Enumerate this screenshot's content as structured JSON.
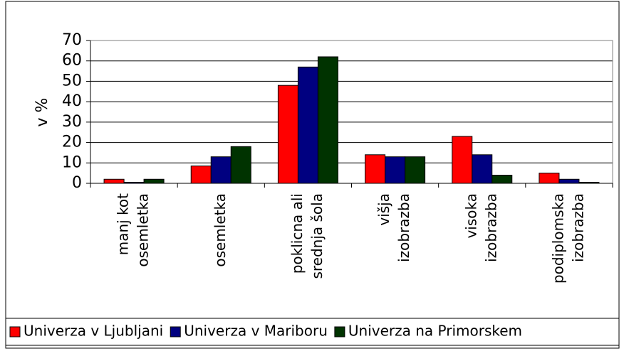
{
  "chart_data": {
    "type": "bar",
    "categories": [
      [
        "manj kot",
        "osemletka"
      ],
      [
        "osemletka"
      ],
      [
        "poklicna ali",
        "srednja šola"
      ],
      [
        "višja",
        "izobrazba"
      ],
      [
        "visoka",
        "izobrazba"
      ],
      [
        "podiplomska",
        "izobrazba"
      ]
    ],
    "series": [
      {
        "name": "Univerza v Ljubljani",
        "color": "#ff0000",
        "values": [
          2,
          8.5,
          48,
          14,
          23,
          5
        ]
      },
      {
        "name": "Univerza v Mariboru",
        "color": "#000080",
        "values": [
          0.5,
          13,
          57,
          13,
          14,
          2
        ]
      },
      {
        "name": "Univerza na Primorskem",
        "color": "#003300",
        "values": [
          2,
          18,
          62,
          13,
          4,
          0.5
        ]
      }
    ],
    "ylabel": "v %",
    "ylim": [
      0,
      70
    ],
    "yticks": [
      0,
      10,
      20,
      30,
      40,
      50,
      60,
      70
    ],
    "grid": true,
    "legend": "bottom"
  }
}
